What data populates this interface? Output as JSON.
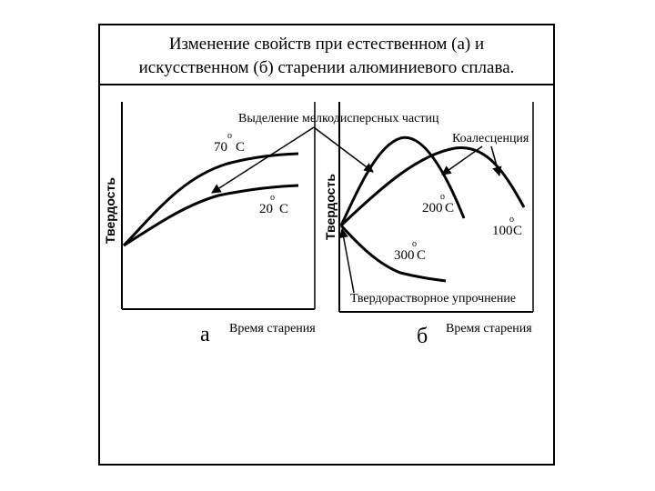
{
  "title": {
    "line1": "Изменение свойств при естественном (а) и",
    "line2": "искусственном (б) старении алюминиевого сплава."
  },
  "panel_a": {
    "ylabel": "Твердость",
    "xlabel": "Время старения",
    "panel_label": "а",
    "temp_high": "70",
    "temp_low": "20",
    "deg_symbol": "o",
    "unit": "C"
  },
  "panel_b": {
    "ylabel": "Твердость",
    "xlabel": "Время старения",
    "panel_label": "б",
    "temp_200": "200",
    "temp_100": "100",
    "temp_300": "300",
    "deg_symbol": "o",
    "unit": "C",
    "annotation_precipitation": "Выделение мелкодисперсных частиц",
    "annotation_coalescence": "Коалесценция",
    "annotation_solid_solution": "Твердорастворное упрочнение"
  }
}
